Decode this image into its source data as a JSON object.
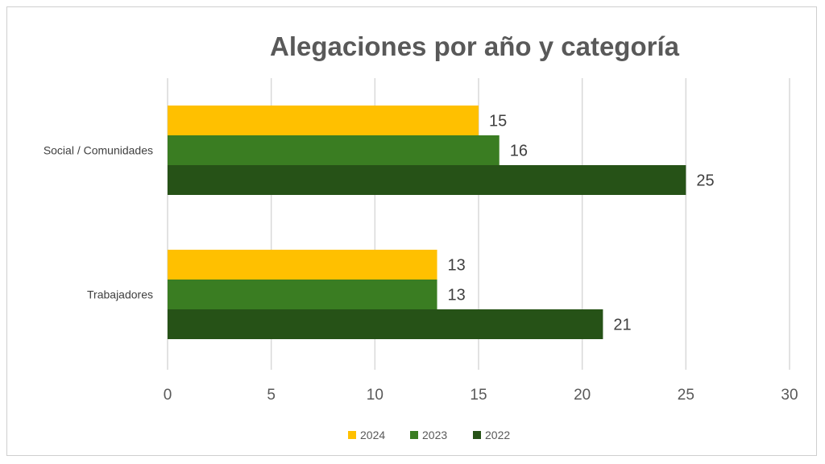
{
  "chart_data": {
    "type": "bar",
    "orientation": "horizontal",
    "title": "Alegaciones por año y categoría",
    "categories": [
      "Social / Comunidades",
      "Trabajadores"
    ],
    "series": [
      {
        "name": "2024",
        "color": "#FFC000",
        "values": [
          15,
          13
        ]
      },
      {
        "name": "2023",
        "color": "#3A7D22",
        "values": [
          16,
          13
        ]
      },
      {
        "name": "2022",
        "color": "#265217",
        "values": [
          25,
          21
        ]
      }
    ],
    "xlim": [
      0,
      30
    ],
    "xticks": [
      "0",
      "5",
      "10",
      "15",
      "20",
      "25",
      "30"
    ],
    "grid": "vertical",
    "legend": "bottom",
    "data_labels": true
  }
}
